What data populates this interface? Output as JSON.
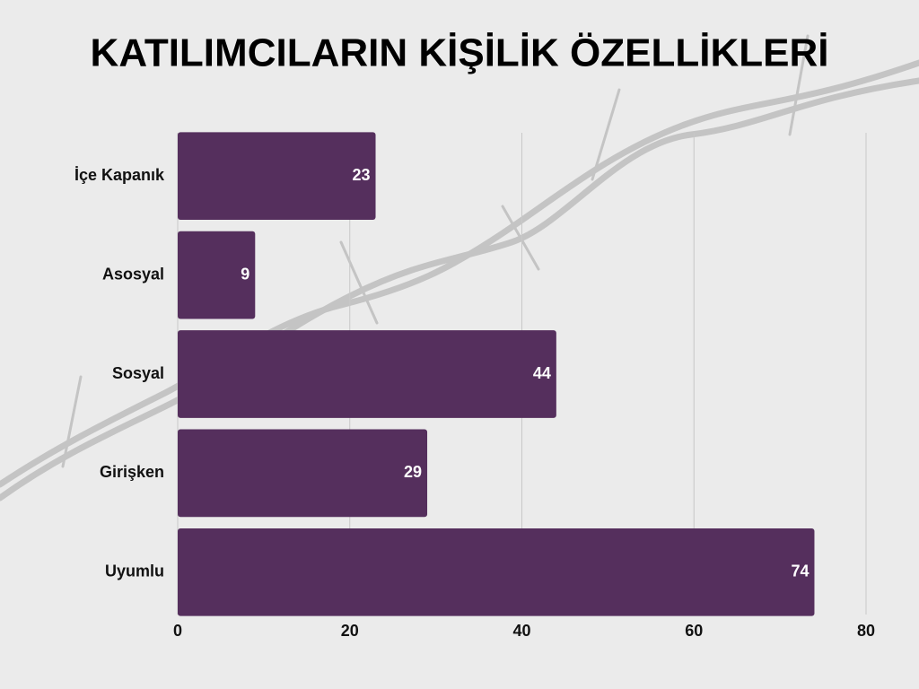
{
  "chart_data": {
    "type": "bar",
    "orientation": "horizontal",
    "title": "KATILIMCILARIN KİŞİLİK ÖZELLİKLERİ",
    "categories": [
      "İçe Kapanık",
      "Asosyal",
      "Sosyal",
      "Girişken",
      "Uyumlu"
    ],
    "values": [
      23,
      9,
      44,
      29,
      74
    ],
    "color": "#552f5d",
    "xlim": [
      0,
      80
    ],
    "xticks": [
      0,
      20,
      40,
      60,
      80
    ],
    "grid": true
  }
}
